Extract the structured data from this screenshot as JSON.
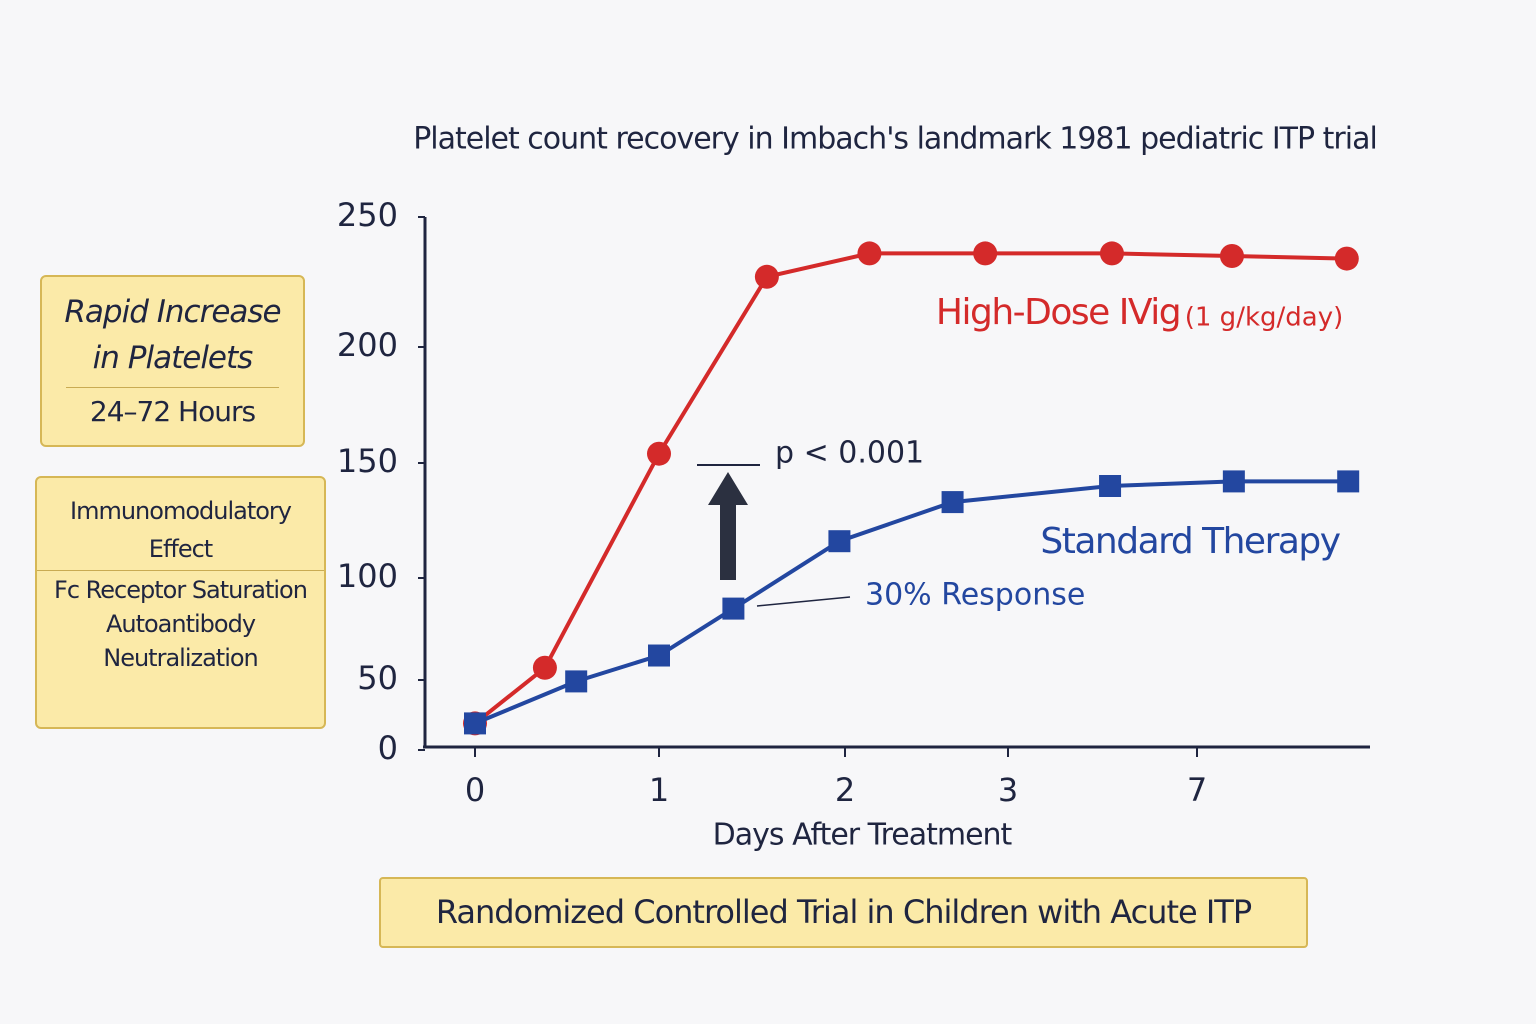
{
  "chart_data": {
    "type": "line",
    "title": "Platelet count recovery in Imbach's landmark 1981 pediatric ITP trial",
    "x_label": "Days After Treatment",
    "x_scale": "piecewise",
    "y_scale": "piecewise",
    "xlim": [
      -0.27,
      10.66
    ],
    "xticks": [
      0,
      1,
      2,
      3,
      7
    ],
    "ylim": [
      0,
      250
    ],
    "yticks": [
      0,
      50,
      100,
      150,
      200,
      250
    ],
    "series": [
      {
        "name": "High-Dose IVig",
        "dose": "(1 g/kg/day)",
        "color": "#d42a2a",
        "marker": "circle",
        "x": [
          0,
          0.38,
          1,
          1.58,
          2.15,
          2.86,
          5.2,
          7.74,
          10.17
        ],
        "values": [
          19,
          56,
          154,
          227,
          236,
          236,
          236,
          235,
          234
        ]
      },
      {
        "name": "Standard Therapy",
        "color": "#2347a0",
        "marker": "square",
        "x": [
          0,
          0.55,
          1,
          1.4,
          1.97,
          2.66,
          5.16,
          7.78,
          10.2
        ],
        "values": [
          19,
          49,
          62,
          85,
          116,
          133,
          140,
          142,
          142
        ]
      }
    ],
    "annotations": {
      "p_value": "p < 0.001",
      "response": "30% Response"
    }
  },
  "panels": [
    {
      "title_lines": [
        "Rapid Increase",
        "in Platelets"
      ],
      "body_lines": [
        "24–72 Hours"
      ]
    },
    {
      "title_lines": [
        "Immunomodulatory",
        "Effect"
      ],
      "body_lines": [
        "Fc Receptor Saturation",
        "Autoantibody",
        "Neutralization"
      ]
    }
  ],
  "footer": "Randomized Controlled Trial in Children with Acute ITP"
}
